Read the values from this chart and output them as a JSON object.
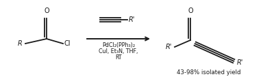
{
  "background_color": "#ffffff",
  "fig_width": 3.84,
  "fig_height": 1.19,
  "dpi": 100,
  "arrow_label_line1": "PdCl₂(PPh₃)₂",
  "arrow_label_line2": "CuI, Et₃N, THF,",
  "arrow_label_line3": "RT",
  "yield_text": "43-98% isolated yield",
  "font_size_main": 7.0,
  "font_size_yield": 6.2,
  "font_size_reagents": 5.8,
  "line_color": "#1a1a1a",
  "text_color": "#1a1a1a"
}
